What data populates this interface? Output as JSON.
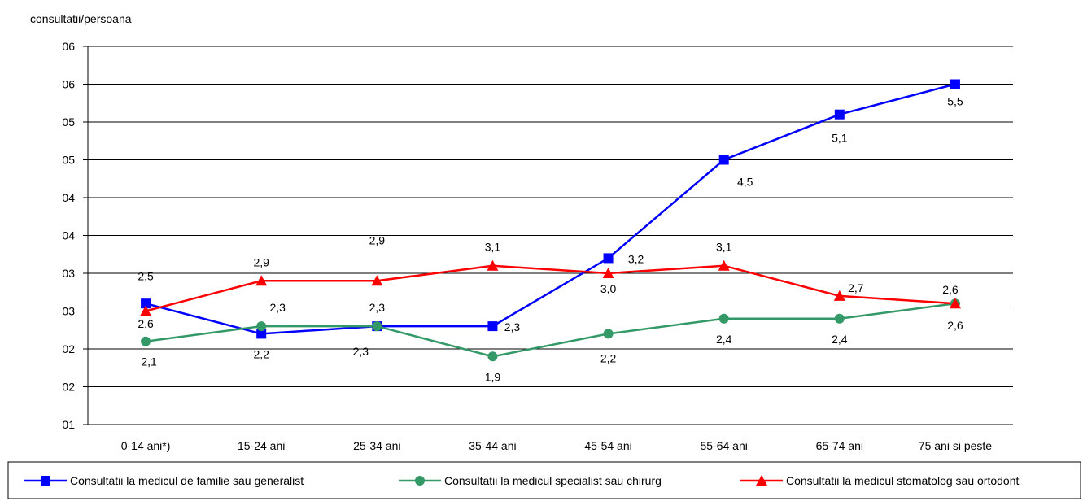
{
  "chart_data": {
    "type": "line",
    "title": "",
    "ylabel": "consultatii/persoana",
    "xlabel": "",
    "categories": [
      "0-14 ani*)",
      "15-24 ani",
      "25-34 ani",
      "35-44 ani",
      "45-54 ani",
      "55-64 ani",
      "65-74 ani",
      "75 ani si peste"
    ],
    "ytick_labels": [
      "01",
      "02",
      "02",
      "03",
      "03",
      "04",
      "04",
      "05",
      "05",
      "06",
      "06"
    ],
    "ylim": [
      1.0,
      6.0
    ],
    "grid": true,
    "legend_position": "bottom",
    "series": [
      {
        "name": "Consultatii la medicul de familie sau generalist",
        "color": "#0000FF",
        "marker": "square",
        "values": [
          2.6,
          2.2,
          2.3,
          2.3,
          3.2,
          4.5,
          5.1,
          5.5
        ],
        "labels": [
          "2,6",
          "2,2",
          "2,3",
          "2,3",
          "3,2",
          "4,5",
          "5,1",
          "5,5"
        ]
      },
      {
        "name": "Consultatii la medicul specialist sau chirurg",
        "color": "#339966",
        "marker": "circle",
        "values": [
          2.1,
          2.3,
          2.3,
          1.9,
          2.2,
          2.4,
          2.4,
          2.6
        ],
        "labels": [
          "2,1",
          "2,3",
          "2,3",
          "1,9",
          "2,2",
          "2,4",
          "2,4",
          "2,6"
        ]
      },
      {
        "name": "Consultatii la medicul stomatolog sau ortodont",
        "color": "#FF0000",
        "marker": "triangle",
        "values": [
          2.5,
          2.9,
          2.9,
          3.1,
          3.0,
          3.1,
          2.7,
          2.6
        ],
        "labels": [
          "2,5",
          "2,9",
          "2,9",
          "3,1",
          "3,0",
          "3,1",
          "2,7",
          "2,6"
        ]
      }
    ]
  }
}
